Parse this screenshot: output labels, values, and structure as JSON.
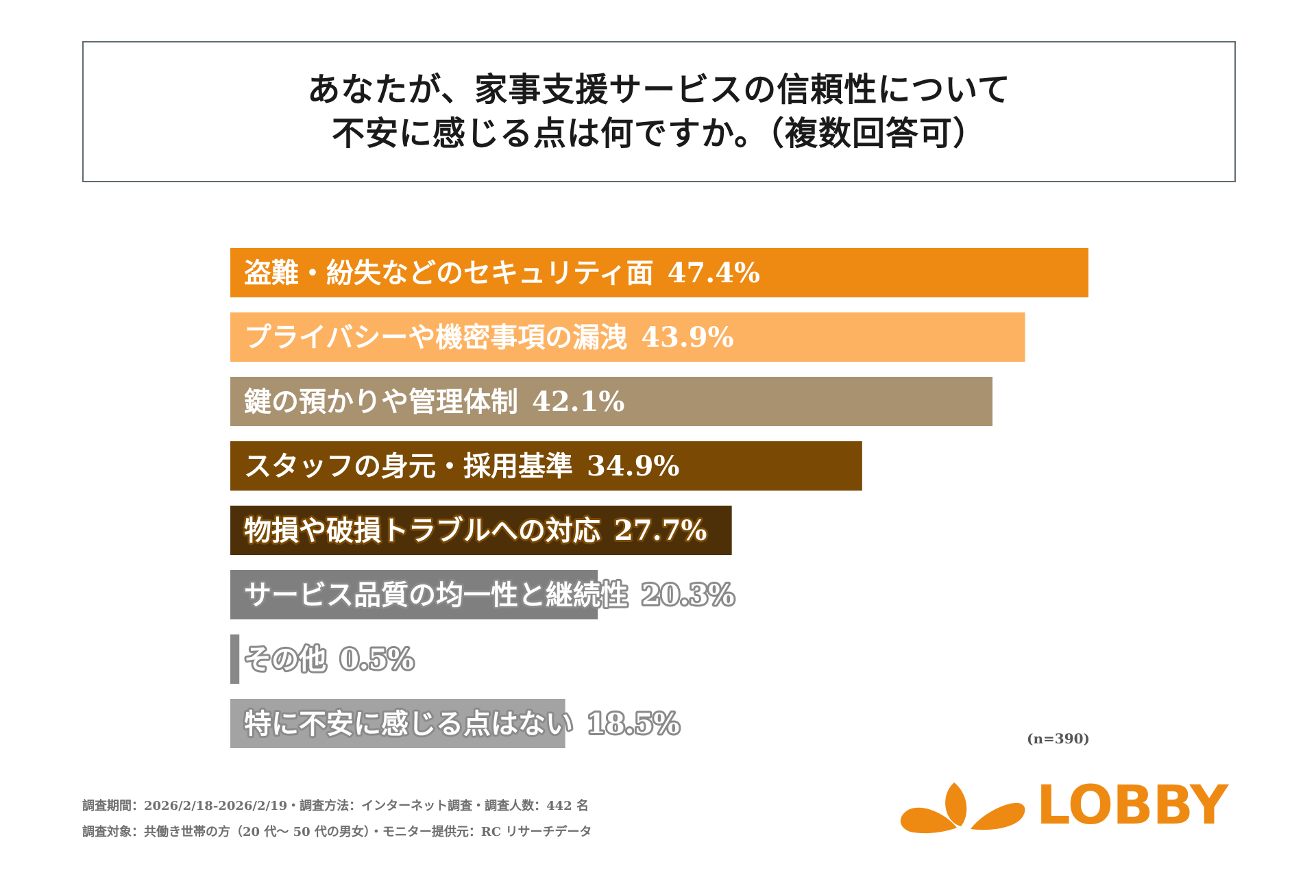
{
  "header": {
    "title_line1": "あなたが、家事支援サービスの信頼性について",
    "title_line2": "不安に感じる点は何ですか。（複数回答可）"
  },
  "chart_data": {
    "type": "bar",
    "orientation": "horizontal",
    "title": "あなたが、家事支援サービスの信頼性について不安に感じる点は何ですか。（複数回答可）",
    "unit": "%",
    "xlim": [
      0,
      47.4
    ],
    "categories": [
      "盗難・紛失などのセキュリティ面",
      "プライバシーや機密事項の漏洩",
      "鍵の預かりや管理体制",
      "スタッフの身元・採用基準",
      "物損や破損トラブルへの対応",
      "サービス品質の均一性と継続性",
      "その他",
      "特に不安に感じる点はない"
    ],
    "values": [
      47.4,
      43.9,
      42.1,
      34.9,
      27.7,
      20.3,
      0.5,
      18.5
    ],
    "value_labels": [
      "47.4%",
      "43.9%",
      "42.1%",
      "34.9%",
      "27.7%",
      "20.3%",
      "0.5%",
      "18.5%"
    ],
    "colors": [
      "#ee8a12",
      "#fdb262",
      "#a89270",
      "#7a4a05",
      "#4d2f08",
      "#7f7f7f",
      "#888888",
      "#a3a3a3"
    ],
    "label_stroke": "#7a4a05",
    "gray_label_stroke": "#8a8a8a"
  },
  "sample": "(n=390)",
  "footnotes": [
    "調査期間：2026/2/18-2026/2/19・調査方法：インターネット調査・調査人数：442 名",
    "調査対象：共働き世帯の方（20 代〜 50 代の男女）・モニター提供元：RC リサーチデータ"
  ],
  "logo": {
    "text": "LOBBY",
    "color": "#ee8a12"
  }
}
